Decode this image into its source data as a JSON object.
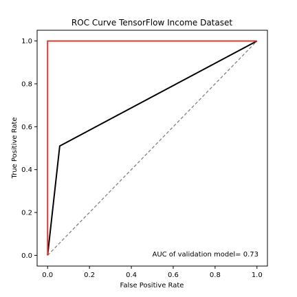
{
  "chart_data": {
    "type": "line",
    "title": "ROC Curve TensorFlow Income Dataset",
    "xlabel": "False Positive Rate",
    "ylabel": "True Positive Rate",
    "xlim": [
      -0.05,
      1.05
    ],
    "ylim": [
      -0.05,
      1.05
    ],
    "xticks": [
      0.0,
      0.2,
      0.4,
      0.6,
      0.8,
      1.0
    ],
    "yticks": [
      0.0,
      0.2,
      0.4,
      0.6,
      0.8,
      1.0
    ],
    "xtick_labels": [
      "0.0",
      "0.2",
      "0.4",
      "0.6",
      "0.8",
      "1.0"
    ],
    "ytick_labels": [
      "0.0",
      "0.2",
      "0.4",
      "0.6",
      "0.8",
      "1.0"
    ],
    "grid": false,
    "series": [
      {
        "color": "#e03a2f",
        "style": "solid",
        "x": [
          0.0,
          0.0,
          1.0
        ],
        "y": [
          0.0,
          1.0,
          1.0
        ]
      },
      {
        "color": "#000000",
        "style": "solid",
        "x": [
          0.0,
          0.058,
          1.0
        ],
        "y": [
          0.0,
          0.51,
          1.0
        ]
      },
      {
        "color": "#808080",
        "style": "dashed",
        "x": [
          0.0,
          1.0
        ],
        "y": [
          0.0,
          1.0
        ]
      }
    ],
    "annotation": {
      "text": "AUC of validation model= 0.73",
      "position": "bottom-right"
    }
  }
}
